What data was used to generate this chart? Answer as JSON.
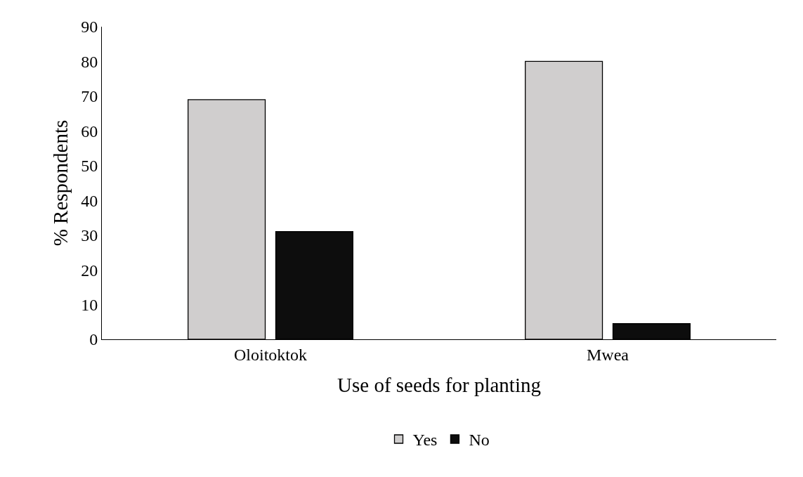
{
  "chart_data": {
    "type": "bar",
    "xlabel": "Use of seeds for planting",
    "ylabel": "% Respondents",
    "categories": [
      "Oloitoktok",
      "Mwea"
    ],
    "series": [
      {
        "name": "Yes",
        "color": "#d0cece",
        "values": [
          69,
          80
        ]
      },
      {
        "name": "No",
        "color": "#0d0d0d",
        "values": [
          31,
          4.5
        ]
      }
    ],
    "ylim": [
      0,
      90
    ],
    "yticks": [
      0,
      10,
      20,
      30,
      40,
      50,
      60,
      70,
      80,
      90
    ],
    "grid": false,
    "legend": "bottom"
  }
}
